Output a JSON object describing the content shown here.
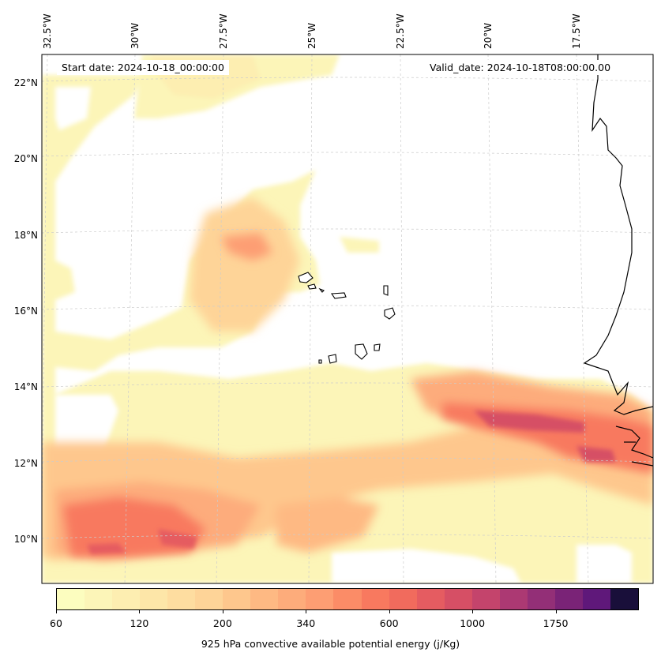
{
  "map": {
    "start_date_label": "Start date: 2024-10-18_00:00:00",
    "valid_date_label": "Valid_date: 2024-10-18T08:00:00.00",
    "lon_labels": [
      "32.5°W",
      "30°W",
      "27.5°W",
      "25°W",
      "22.5°W",
      "20°W",
      "17.5°W"
    ],
    "lat_labels": [
      "22°N",
      "20°N",
      "18°N",
      "16°N",
      "14°N",
      "12°N",
      "10°N"
    ],
    "extent": {
      "lon_min": -32.8,
      "lon_max": -15.5,
      "lat_min": 8.9,
      "lat_max": 22.7
    }
  },
  "colorbar": {
    "title": "925 hPa convective available potential energy (j/Kg)",
    "tick_labels": [
      "60",
      "120",
      "200",
      "340",
      "600",
      "1000",
      "1750"
    ],
    "colors": [
      "#fcfdbf",
      "#fcf5b8",
      "#fdeeb1",
      "#fde6a8",
      "#fedda0",
      "#fed498",
      "#fec78d",
      "#feb983",
      "#fdac7b",
      "#fd9e73",
      "#fb8c67",
      "#f8795f",
      "#f16b5d",
      "#e55c61",
      "#d64f65",
      "#c4446c",
      "#ac3973",
      "#932f77",
      "#7a2377",
      "#5f187a",
      "#190f3a"
    ],
    "tick_positions_in_bins": [
      0,
      3,
      6,
      9,
      12,
      15,
      18
    ]
  },
  "chart_data": {
    "type": "heatmap",
    "title": "",
    "variable": "925 hPa convective available potential energy (j/Kg)",
    "levels_shown": [
      60,
      120,
      200,
      340,
      600,
      1000,
      1750
    ],
    "regions": [
      {
        "description": "band",
        "lat_range": [
          12.5,
          13.5
        ],
        "lon_range": [
          -21.5,
          -16
        ],
        "value_max": 1200
      },
      {
        "description": "band",
        "lat_range": [
          9.5,
          11.5
        ],
        "lon_range": [
          -32.5,
          -26.5
        ],
        "value_max": 800
      },
      {
        "description": "patch",
        "lat_range": [
          15,
          19
        ],
        "lon_range": [
          -28.5,
          -25.5
        ],
        "value_max": 300
      }
    ]
  }
}
